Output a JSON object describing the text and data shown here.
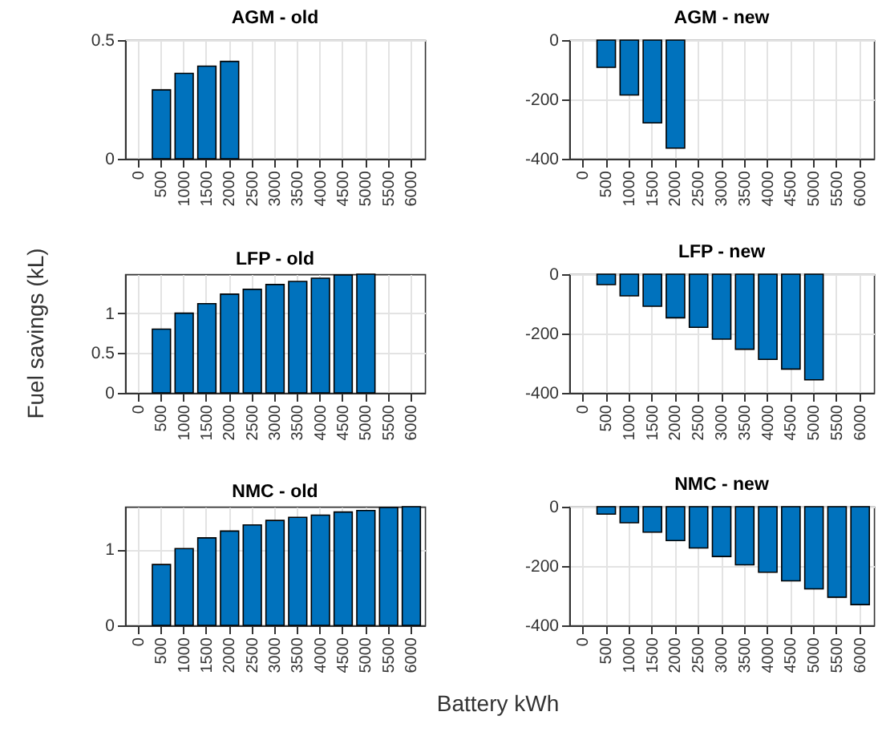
{
  "chart_data": [
    {
      "type": "bar",
      "title": "AGM - old",
      "categories": [
        "0",
        "500",
        "1000",
        "1500",
        "2000",
        "2500",
        "3000",
        "3500",
        "4000",
        "4500",
        "5000",
        "5500",
        "6000"
      ],
      "color": "#0072bd",
      "grid": true,
      "ylim": [
        0,
        0.5
      ],
      "yticks": [
        0,
        0.5
      ],
      "values": [
        null,
        0.29,
        0.36,
        0.39,
        0.41,
        null,
        null,
        null,
        null,
        null,
        null,
        null,
        null
      ]
    },
    {
      "type": "bar",
      "title": "AGM - new",
      "categories": [
        "0",
        "500",
        "1000",
        "1500",
        "2000",
        "2500",
        "3000",
        "3500",
        "4000",
        "4500",
        "5000",
        "5500",
        "6000"
      ],
      "color": "#0072bd",
      "grid": true,
      "ylim": [
        -400,
        0
      ],
      "yticks": [
        -400,
        -200,
        0
      ],
      "values": [
        null,
        -92,
        -185,
        -279,
        -364,
        null,
        null,
        null,
        null,
        null,
        null,
        null,
        null
      ]
    },
    {
      "type": "bar",
      "title": "LFP - old",
      "ylabel": "Fuel savings (kL)",
      "categories": [
        "0",
        "500",
        "1000",
        "1500",
        "2000",
        "2500",
        "3000",
        "3500",
        "4000",
        "4500",
        "5000",
        "5500",
        "6000"
      ],
      "color": "#0072bd",
      "grid": true,
      "ylim": [
        0,
        1.49
      ],
      "yticks": [
        0,
        0.5,
        1
      ],
      "values": [
        null,
        0.8,
        1.0,
        1.12,
        1.24,
        1.3,
        1.36,
        1.4,
        1.44,
        1.48,
        1.49,
        null,
        null
      ]
    },
    {
      "type": "bar",
      "title": "LFP - new",
      "categories": [
        "0",
        "500",
        "1000",
        "1500",
        "2000",
        "2500",
        "3000",
        "3500",
        "4000",
        "4500",
        "5000",
        "5500",
        "6000"
      ],
      "color": "#0072bd",
      "grid": true,
      "ylim": [
        -400,
        0
      ],
      "yticks": [
        -400,
        -200,
        0
      ],
      "values": [
        null,
        -35,
        -73,
        -108,
        -147,
        -179,
        -219,
        -253,
        -287,
        -320,
        -356,
        null,
        null
      ]
    },
    {
      "type": "bar",
      "title": "NMC - old",
      "xlabel": "Battery kWh",
      "categories": [
        "0",
        "500",
        "1000",
        "1500",
        "2000",
        "2500",
        "3000",
        "3500",
        "4000",
        "4500",
        "5000",
        "5500",
        "6000"
      ],
      "color": "#0072bd",
      "grid": true,
      "ylim": [
        0,
        1.56
      ],
      "yticks": [
        0,
        1
      ],
      "values": [
        null,
        0.8,
        1.01,
        1.15,
        1.24,
        1.32,
        1.38,
        1.42,
        1.45,
        1.49,
        1.51,
        1.55,
        1.56
      ]
    },
    {
      "type": "bar",
      "title": "NMC - new",
      "categories": [
        "0",
        "500",
        "1000",
        "1500",
        "2000",
        "2500",
        "3000",
        "3500",
        "4000",
        "4500",
        "5000",
        "5500",
        "6000"
      ],
      "color": "#0072bd",
      "grid": true,
      "ylim": [
        -400,
        0
      ],
      "yticks": [
        -400,
        -200,
        0
      ],
      "values": [
        null,
        -25,
        -54,
        -86,
        -114,
        -139,
        -168,
        -196,
        -221,
        -250,
        -277,
        -305,
        -330
      ]
    }
  ]
}
